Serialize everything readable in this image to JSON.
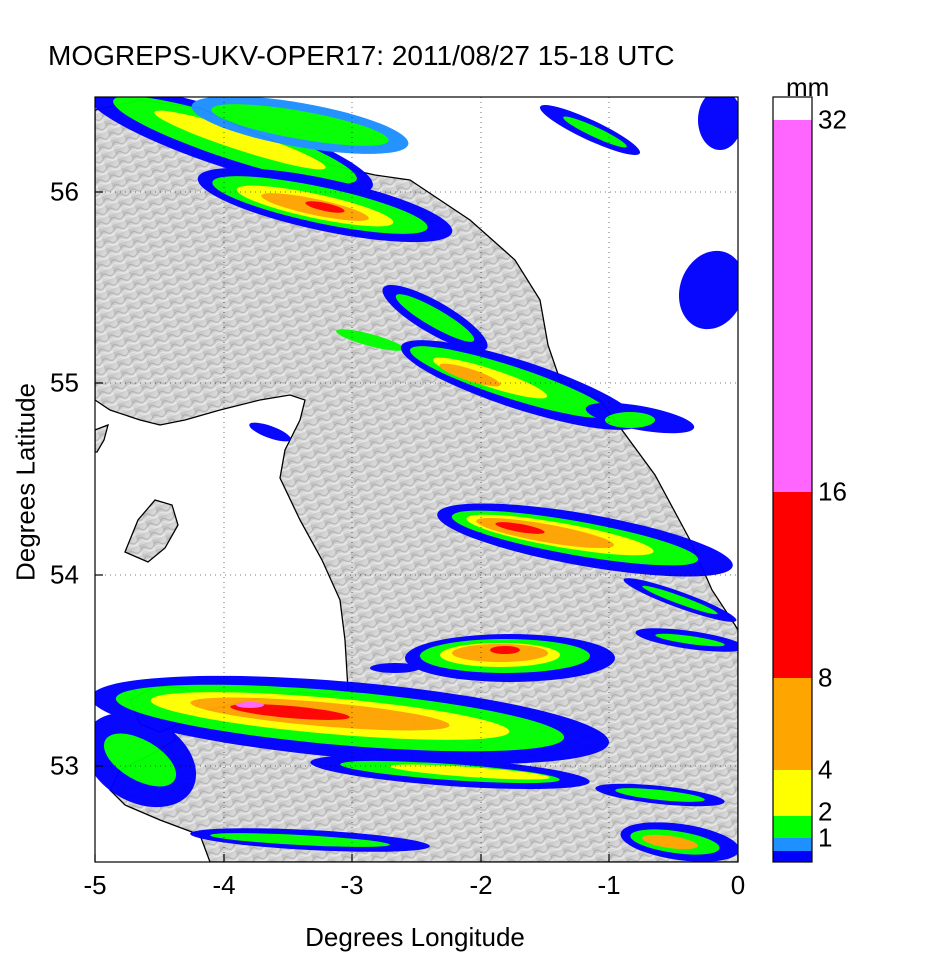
{
  "title": "MOGREPS-UKV-OPER17: 2011/08/27 15-18 UTC",
  "map": {
    "xlabel": "Degrees Longitude",
    "ylabel": "Degrees Latitude",
    "xlim": [
      -5,
      0
    ],
    "ylim": [
      52.5,
      56.5
    ],
    "xticks": [
      "-5",
      "-4",
      "-3",
      "-2",
      "-1",
      "0"
    ],
    "yticks": [
      "53",
      "54",
      "55",
      "56"
    ],
    "grid": "dotted",
    "background": "grey shaded terrain relief",
    "coastline_color": "#000000"
  },
  "colorbar": {
    "unit": "mm",
    "tick_labels": [
      "1",
      "2",
      "4",
      "8",
      "16",
      "32"
    ],
    "levels": [
      {
        "from": 0.25,
        "to": 0.5,
        "color": "#0000ff"
      },
      {
        "from": 0.5,
        "to": 1,
        "color": "#1e90ff"
      },
      {
        "from": 1,
        "to": 2,
        "color": "#00ff00"
      },
      {
        "from": 2,
        "to": 4,
        "color": "#ffff00"
      },
      {
        "from": 4,
        "to": 8,
        "color": "#ffa500"
      },
      {
        "from": 8,
        "to": 16,
        "color": "#ff0000"
      },
      {
        "from": 16,
        "to": 32,
        "color": "#ff66ff"
      },
      {
        "from": 32,
        "to": 64,
        "color": "#ffffff"
      }
    ]
  }
}
